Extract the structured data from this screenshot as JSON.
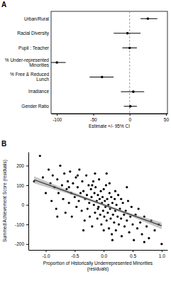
{
  "chart_data": [
    {
      "type": "dot",
      "panel": "A",
      "orientation": "horizontal",
      "color": "#000000",
      "x_label": "Estimate +/- 95% CI",
      "categories": [
        "Urban/Rural",
        "Racial Diversity",
        "Pupil : Teacher",
        "% Under-represented Minorities",
        "% Free & Reduced Lunch",
        "Irradiance",
        "Gender Ratio"
      ],
      "values": [
        25,
        -3,
        0,
        -100,
        -38,
        5,
        1
      ],
      "ci_lower": [
        15,
        -22,
        -10,
        -112,
        -55,
        -12,
        -8
      ],
      "ci_upper": [
        38,
        15,
        10,
        -88,
        -22,
        20,
        10
      ],
      "ref_line": 0,
      "xlim": [
        -108,
        52
      ],
      "xticks": [
        -100,
        -50,
        0,
        50
      ]
    },
    {
      "type": "scatter",
      "panel": "B",
      "color": "#000000",
      "x_label": "Proportion of Historically Underrepresented Minorities (residuals)",
      "y_label": "Summed Achievement Score (residuals)",
      "x": [
        -1.1,
        -1.05,
        -1.0,
        -0.95,
        -0.92,
        -0.9,
        -0.88,
        -0.85,
        -0.82,
        -0.8,
        -0.78,
        -0.75,
        -0.72,
        -0.7,
        -0.68,
        -0.66,
        -0.64,
        -0.62,
        -0.6,
        -0.58,
        -0.56,
        -0.55,
        -0.53,
        -0.5,
        -0.48,
        -0.47,
        -0.45,
        -0.43,
        -0.42,
        -0.4,
        -0.38,
        -0.37,
        -0.35,
        -0.33,
        -0.32,
        -0.3,
        -0.29,
        -0.28,
        -0.26,
        -0.25,
        -0.24,
        -0.22,
        -0.21,
        -0.2,
        -0.18,
        -0.17,
        -0.16,
        -0.15,
        -0.14,
        -0.12,
        -0.11,
        -0.1,
        -0.09,
        -0.08,
        -0.07,
        -0.06,
        -0.05,
        -0.04,
        -0.03,
        -0.02,
        -0.01,
        0,
        0.01,
        0.02,
        0.03,
        0.04,
        0.05,
        0.06,
        0.07,
        0.08,
        0.09,
        0.1,
        0.11,
        0.12,
        0.13,
        0.14,
        0.15,
        0.16,
        0.18,
        0.19,
        0.2,
        0.21,
        0.22,
        0.24,
        0.25,
        0.26,
        0.28,
        0.3,
        0.31,
        0.33,
        0.35,
        0.36,
        0.38,
        0.4,
        0.42,
        0.44,
        0.46,
        0.48,
        0.5,
        0.52,
        0.55,
        0.58,
        0.6,
        0.63,
        0.66,
        0.7,
        0.74,
        0.78,
        0.82,
        0.88,
        0.95,
        1.0,
        -0.6,
        -0.45,
        -0.2,
        -0.1,
        0,
        0.1,
        0.2,
        0.3,
        -0.15,
        0.05,
        -0.35,
        0.15,
        -0.8,
        0.4,
        -1.2,
        0.7
      ],
      "values": [
        250,
        140,
        60,
        180,
        110,
        20,
        150,
        90,
        -20,
        130,
        60,
        200,
        100,
        30,
        160,
        -40,
        80,
        120,
        10,
        170,
        60,
        -60,
        110,
        40,
        140,
        -10,
        90,
        20,
        180,
        60,
        -30,
        120,
        70,
        -80,
        30,
        150,
        50,
        -20,
        100,
        10,
        -60,
        80,
        40,
        -110,
        120,
        0,
        60,
        -40,
        90,
        20,
        -70,
        50,
        -10,
        130,
        30,
        -50,
        70,
        -100,
        10,
        40,
        -30,
        80,
        -60,
        20,
        -10,
        100,
        -80,
        30,
        -40,
        0,
        -120,
        60,
        -20,
        -70,
        40,
        -150,
        10,
        -50,
        -90,
        30,
        -30,
        -130,
        0,
        -60,
        50,
        -100,
        -20,
        -70,
        -160,
        10,
        -50,
        -110,
        -30,
        -80,
        20,
        -140,
        -60,
        -10,
        -100,
        -180,
        -50,
        -120,
        -20,
        -90,
        -150,
        -60,
        -110,
        -170,
        -80,
        -130,
        -100,
        -200,
        90,
        150,
        100,
        -20,
        -130,
        110,
        70,
        30,
        160,
        160,
        -130,
        -180,
        -60,
        90,
        120,
        -190
      ],
      "fit": {
        "x": [
          -1.2,
          -0.6,
          0,
          0.5,
          1.0
        ],
        "y": [
          128,
          64,
          0,
          -54,
          -107
        ],
        "lower": [
          110,
          55,
          -6,
          -62,
          -124
        ],
        "upper": [
          146,
          73,
          6,
          -46,
          -90
        ]
      },
      "xlim": [
        -1.3,
        1.1
      ],
      "ylim": [
        -230,
        270
      ],
      "xticks": [
        {
          "value": -1.0,
          "label": "-1.0"
        },
        -0.5,
        {
          "value": 0,
          "label": "0.0"
        },
        0.5,
        {
          "value": 1.0,
          "label": "1.0"
        }
      ],
      "yticks": [
        -200,
        -100,
        0,
        100,
        200
      ]
    }
  ]
}
